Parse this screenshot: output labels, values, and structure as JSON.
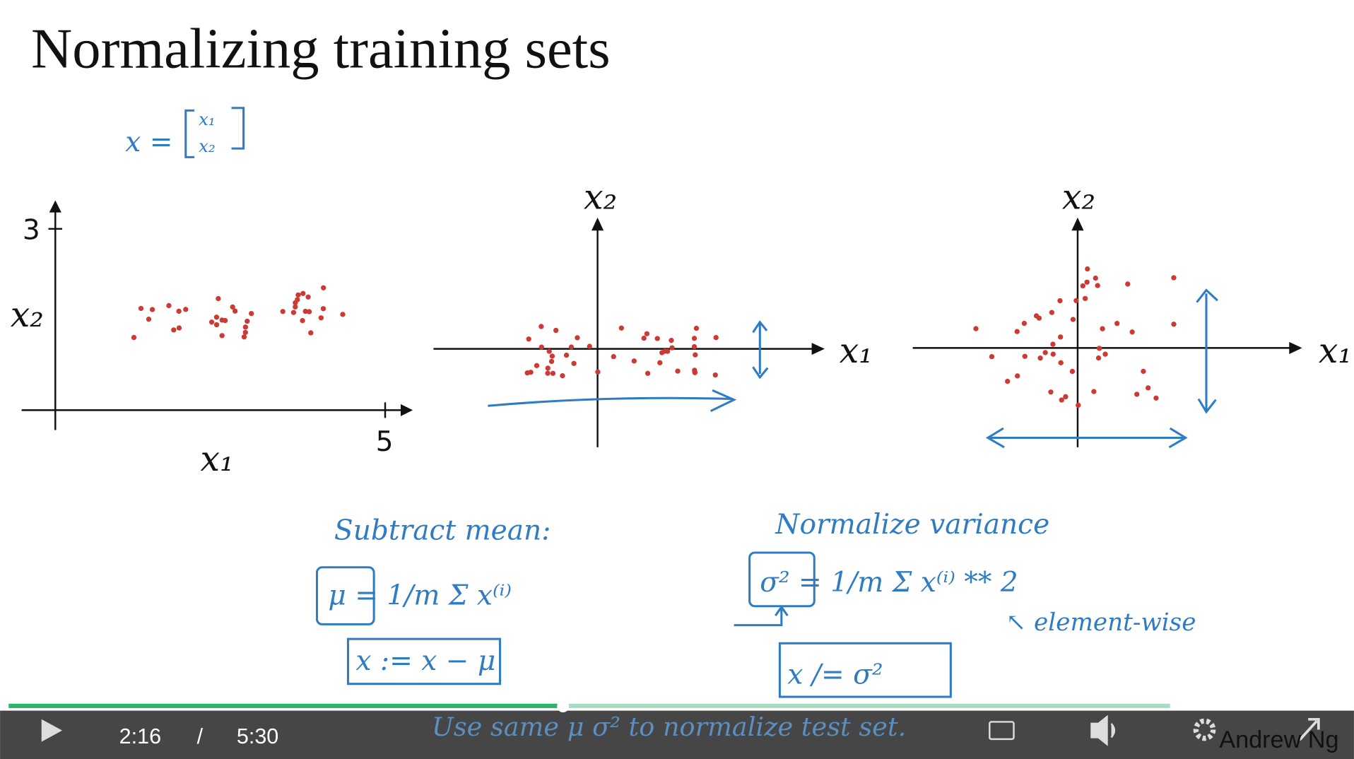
{
  "slide": {
    "title": "Normalizing training sets",
    "vector_note": {
      "lhs": "x =",
      "top": "x₁",
      "bottom": "x₂"
    },
    "plot1": {
      "y_tick": "3",
      "x_tick": "5",
      "y_label": "x₂",
      "x_label": "x₁"
    },
    "plot2": {
      "y_label": "x₂",
      "x_label": "x₁"
    },
    "plot3": {
      "y_label": "x₂",
      "x_label": "x₁"
    },
    "notes": {
      "subtract_mean": "Subtract mean:",
      "mu_formula": "μ = 1/m Σ x⁽ⁱ⁾",
      "mu_update": "x := x − μ",
      "normalize_variance": "Normalize variance",
      "sigma_formula": "σ² = 1/m Σ x⁽ⁱ⁾ ** 2",
      "elementwise": "↖ element-wise",
      "sigma_update": "x /= σ²",
      "test_note": "Use same μ σ² to normalize test set."
    },
    "author": "Andrew Ng"
  },
  "player": {
    "current_time": "2:16",
    "separator": "/",
    "duration": "5:30"
  }
}
